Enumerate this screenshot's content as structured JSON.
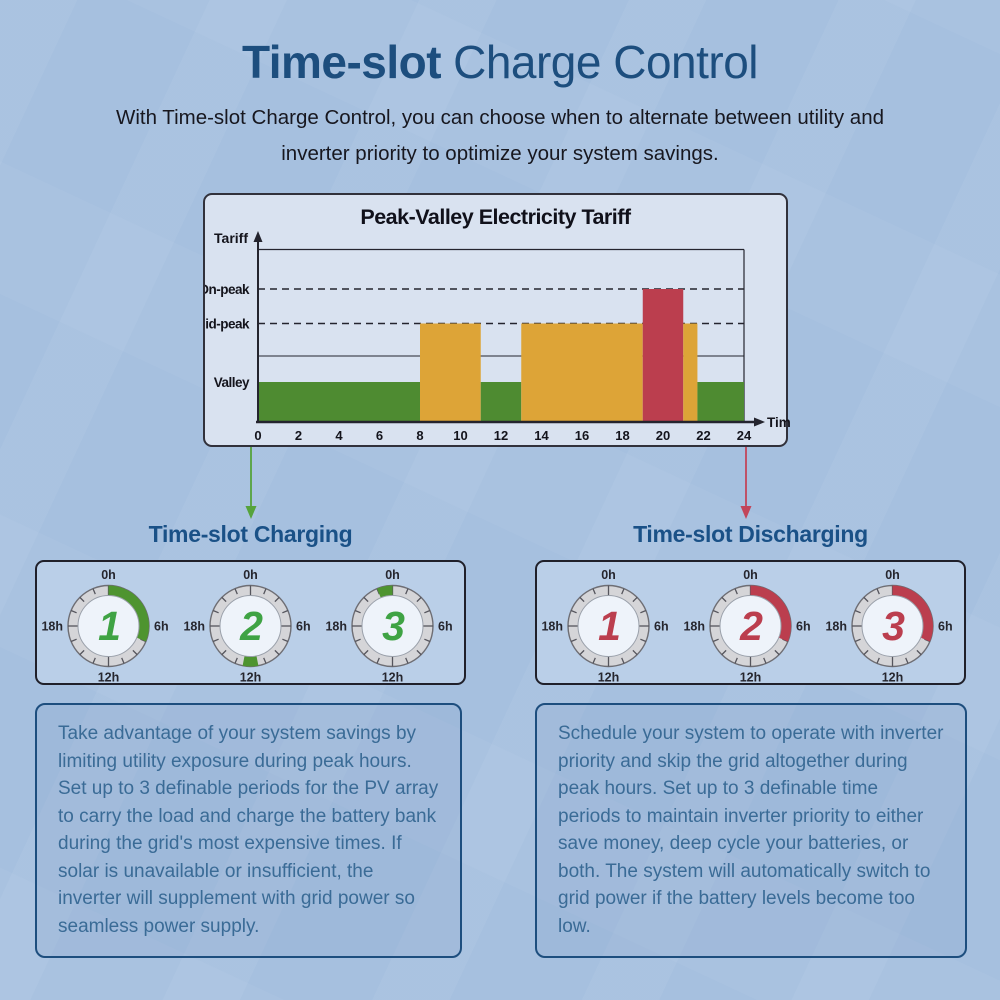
{
  "header": {
    "title_bold": "Time-slot",
    "title_rest": "Charge Control",
    "subtitle_line1": "With Time-slot Charge Control, you can choose when to alternate between utility and",
    "subtitle_line2": "inverter priority to optimize your system savings."
  },
  "chart_data": {
    "type": "bar",
    "title": "Peak-Valley Electricity Tariff",
    "xlabel": "Time",
    "ylabel": "Tariff",
    "xlim": [
      0,
      24
    ],
    "x_ticks": [
      0,
      2,
      4,
      6,
      8,
      10,
      12,
      14,
      16,
      18,
      20,
      22,
      24
    ],
    "grid": "dashed horizontal level lines",
    "levels": [
      {
        "name": "Valley",
        "value": 1,
        "color": "#4E8B31",
        "gridline": "none"
      },
      {
        "name": "Mid-peak",
        "value": 2,
        "color": "#DDA437",
        "gridline": "dashed"
      },
      {
        "name": "On-peak",
        "value": 3,
        "color": "#BB3E4E",
        "gridline": "dashed"
      }
    ],
    "segments": [
      {
        "start": 0,
        "end": 8,
        "level": "Valley"
      },
      {
        "start": 8,
        "end": 11,
        "level": "Mid-peak"
      },
      {
        "start": 11,
        "end": 13,
        "level": "Valley"
      },
      {
        "start": 13,
        "end": 19,
        "level": "Mid-peak"
      },
      {
        "start": 19,
        "end": 21,
        "level": "On-peak"
      },
      {
        "start": 21,
        "end": 21.7,
        "level": "Mid-peak"
      },
      {
        "start": 21.7,
        "end": 24,
        "level": "Valley"
      }
    ]
  },
  "sections": {
    "charging": {
      "heading": "Time-slot Charging",
      "arrow_color": "#56A33C",
      "number_color": "#3FA344",
      "arc_color": "#4E9430",
      "clock_labels": {
        "top": "0h",
        "right": "6h",
        "bottom": "12h",
        "left": "18h"
      },
      "dials": [
        {
          "number": "1",
          "arc": {
            "start_h": 0,
            "end_h": 7.5
          }
        },
        {
          "number": "2",
          "arc": {
            "start_h": 11.25,
            "end_h": 12.75
          }
        },
        {
          "number": "3",
          "arc": {
            "start_h": 22.5,
            "end_h": 24
          }
        }
      ],
      "description": "Take advantage of your system savings by limiting utility exposure during peak hours. Set up to 3 definable periods for the PV array to carry the load and charge the battery bank during the grid's most expensive times. If solar is unavailable or insufficient, the inverter will supplement with grid power so seamless power supply."
    },
    "discharging": {
      "heading": "Time-slot Discharging",
      "arrow_color": "#C2455A",
      "number_color": "#BB3E4E",
      "arc_color": "#BB3E4E",
      "clock_labels": {
        "top": "0h",
        "right": "6h",
        "bottom": "12h",
        "left": "18h"
      },
      "dials": [
        {
          "number": "1",
          "arc": null
        },
        {
          "number": "2",
          "arc": {
            "start_h": 0,
            "end_h": 7.5
          }
        },
        {
          "number": "3",
          "arc": {
            "start_h": 0,
            "end_h": 7.5
          }
        }
      ],
      "description": "Schedule your system to operate with inverter priority and skip the grid altogether during peak hours. Set up to 3 definable time periods to maintain inverter priority to either save money, deep cycle your batteries, or both. The system will automatically switch to grid power if the battery levels become too low."
    }
  },
  "colors": {
    "background": "#A6C0DF",
    "title_blue": "#1D4E7E",
    "heading_blue": "#1A5187",
    "chart_bg": "#D9E2F0",
    "axis_ink": "#24242e",
    "valley_green": "#4E8B31",
    "midpeak_yellow": "#DDA437",
    "onpeak_red": "#BB3E4E",
    "body_text": "#3A6B96"
  }
}
